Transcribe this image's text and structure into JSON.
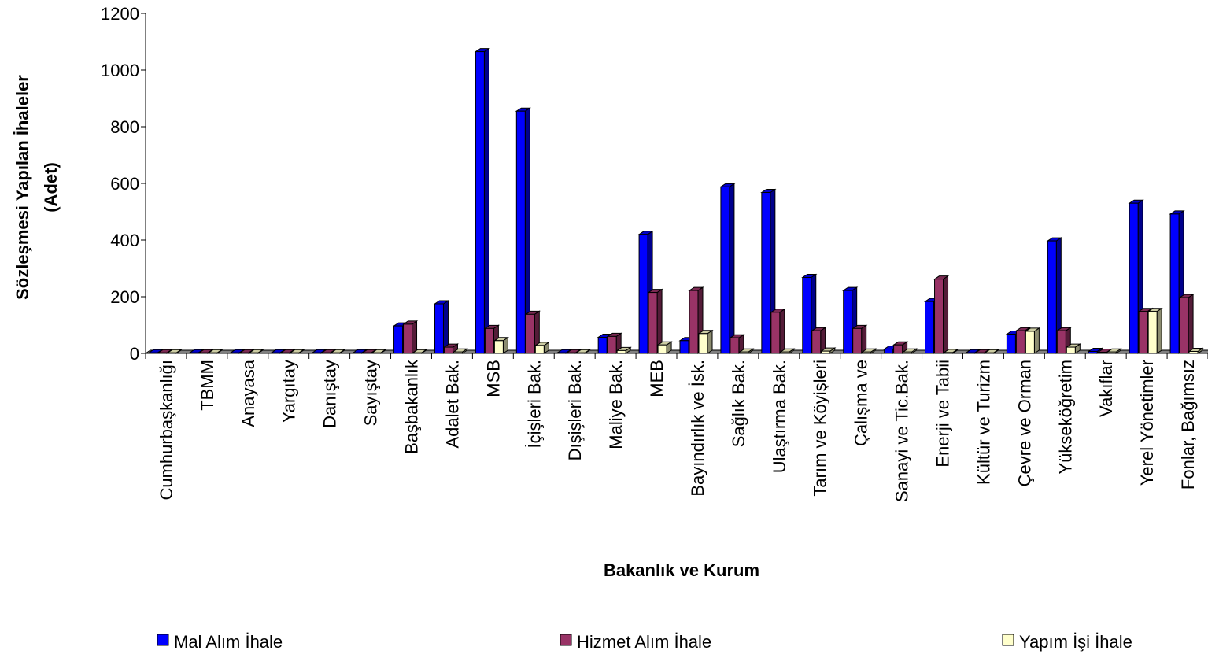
{
  "chart_data": {
    "type": "bar",
    "style": "3d-clustered",
    "title": "",
    "xlabel": "Bakanlık ve Kurum",
    "ylabel_lines": [
      "Sözleşmesi Yapılan İhaleler",
      "(Adet)"
    ],
    "ylim": [
      0,
      1200
    ],
    "yticks": [
      0,
      200,
      400,
      600,
      800,
      1000,
      1200
    ],
    "legend_position": "bottom",
    "categories": [
      "Cumhurbaşkanlığı",
      "TBMM",
      "Anayasa",
      "Yargıtay",
      "Danıştay",
      "Sayıştay",
      "Başbakanlık",
      "Adalet Bak.",
      "MSB",
      "İçişleri Bak.",
      "Dışişleri Bak.",
      "Maliye Bak.",
      "MEB",
      "Bayındırlık ve İsk.",
      "Sağlık Bak.",
      "Ulaştırma Bak.",
      "Tarım ve Köyişleri",
      "Çalışma ve",
      "Sanayi ve Tic.Bak.",
      "Enerji ve Tabii",
      "Kültür ve Turizm",
      "Çevre ve Orman",
      "Yükseköğretim",
      "Vakıflar",
      "Yerel Yönetimler",
      "Fonlar, Bağımsız"
    ],
    "series": [
      {
        "name": "Mal Alım İhale",
        "color": "#0000ff",
        "values": [
          2,
          2,
          2,
          2,
          2,
          2,
          97,
          175,
          1065,
          855,
          2,
          57,
          420,
          45,
          588,
          568,
          268,
          222,
          15,
          183,
          2,
          68,
          397,
          7,
          530,
          492
        ]
      },
      {
        "name": "Hizmet Alım İhale",
        "color": "#993366",
        "values": [
          2,
          2,
          2,
          2,
          2,
          2,
          103,
          22,
          88,
          138,
          2,
          60,
          215,
          222,
          55,
          145,
          80,
          88,
          30,
          262,
          2,
          80,
          80,
          4,
          148,
          197
        ]
      },
      {
        "name": "Yapım İşi İhale",
        "color": "#ffffcc",
        "values": [
          2,
          2,
          2,
          2,
          2,
          2,
          2,
          5,
          45,
          28,
          2,
          10,
          30,
          70,
          5,
          5,
          8,
          5,
          5,
          3,
          2,
          78,
          22,
          5,
          148,
          7
        ]
      }
    ]
  }
}
